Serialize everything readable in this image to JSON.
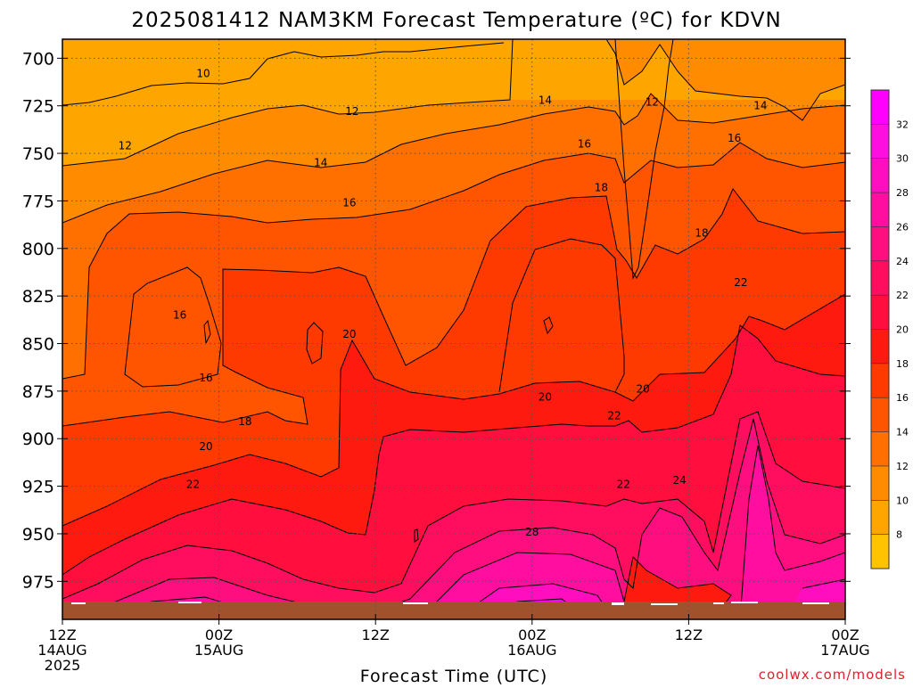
{
  "chart_data": {
    "type": "heatmap",
    "title": "2025081412 NAM3KM Forecast Temperature (ºC) for KDVN",
    "xlabel": "Forecast Time (UTC)",
    "ylabel": "",
    "y_axis": {
      "ticks": [
        700,
        725,
        750,
        775,
        800,
        825,
        850,
        875,
        900,
        925,
        950,
        975
      ],
      "range": [
        690,
        995
      ],
      "inverted": true
    },
    "x_axis": {
      "range_hours": [
        0,
        60
      ],
      "ticks": [
        {
          "hour": 0,
          "lines": [
            "12Z",
            "14AUG",
            "2025"
          ]
        },
        {
          "hour": 12,
          "lines": [
            "00Z",
            "15AUG"
          ]
        },
        {
          "hour": 24,
          "lines": [
            "12Z"
          ]
        },
        {
          "hour": 36,
          "lines": [
            "00Z",
            "16AUG"
          ]
        },
        {
          "hour": 48,
          "lines": [
            "12Z"
          ]
        },
        {
          "hour": 60,
          "lines": [
            "00Z",
            "17AUG"
          ]
        }
      ]
    },
    "colorbar": {
      "levels": [
        8,
        10,
        12,
        14,
        16,
        18,
        20,
        22,
        24,
        26,
        28,
        30,
        32
      ],
      "colors": [
        "#ffc300",
        "#ffa500",
        "#ff8c00",
        "#ff7000",
        "#ff5500",
        "#ff3a00",
        "#ff1a10",
        "#ff0e3e",
        "#ff0e60",
        "#ff0e80",
        "#ff0ea0",
        "#ff0ec0",
        "#ff0ee0",
        "#ff00ff"
      ]
    },
    "contour_labels": [
      {
        "value": "10",
        "hour": 10.8,
        "p": 708
      },
      {
        "value": "12",
        "hour": 4.8,
        "p": 746
      },
      {
        "value": "12",
        "hour": 22.2,
        "p": 728
      },
      {
        "value": "12",
        "hour": 45.2,
        "p": 723
      },
      {
        "value": "14",
        "hour": 19.8,
        "p": 755
      },
      {
        "value": "14",
        "hour": 37.0,
        "p": 722
      },
      {
        "value": "14",
        "hour": 53.5,
        "p": 725
      },
      {
        "value": "16",
        "hour": 22.0,
        "p": 776
      },
      {
        "value": "16",
        "hour": 40.0,
        "p": 745
      },
      {
        "value": "16",
        "hour": 51.5,
        "p": 742
      },
      {
        "value": "16",
        "hour": 9.0,
        "p": 835
      },
      {
        "value": "16",
        "hour": 11.0,
        "p": 868
      },
      {
        "value": "18",
        "hour": 41.3,
        "p": 768
      },
      {
        "value": "18",
        "hour": 49.0,
        "p": 792
      },
      {
        "value": "18",
        "hour": 14.0,
        "p": 891
      },
      {
        "value": "20",
        "hour": 22.0,
        "p": 845
      },
      {
        "value": "20",
        "hour": 37.0,
        "p": 878
      },
      {
        "value": "20",
        "hour": 44.5,
        "p": 874
      },
      {
        "value": "20",
        "hour": 11.0,
        "p": 904
      },
      {
        "value": "22",
        "hour": 52.0,
        "p": 818
      },
      {
        "value": "22",
        "hour": 42.3,
        "p": 888
      },
      {
        "value": "22",
        "hour": 10.0,
        "p": 924
      },
      {
        "value": "22",
        "hour": 43.0,
        "p": 924
      },
      {
        "value": "24",
        "hour": 47.3,
        "p": 922
      },
      {
        "value": "28",
        "hour": 36.0,
        "p": 949
      }
    ],
    "grid": "dotted",
    "legend": "right"
  },
  "credit": "coolwx.com/models"
}
